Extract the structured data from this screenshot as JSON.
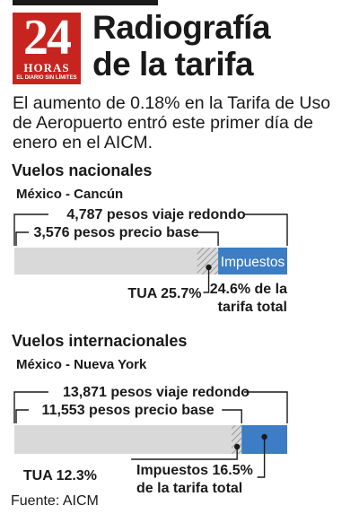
{
  "header": {
    "logo_number": "24",
    "logo_word": "HORAS",
    "logo_tagline": "EL DIARIO SIN LÍMITES",
    "title": "Radiografía de la tarifa",
    "subtitle": "El aumento de 0.18% en la Tarifa de Uso de Aeropuerto entró este primer día de enero en el AICM."
  },
  "colors": {
    "brand": "#c8241f",
    "impuestos": "#3c7dc5",
    "base": "#d9d9d9",
    "tua_hatch": "#9a9a9a",
    "text": "#1a1a1a"
  },
  "chart_data": [
    {
      "type": "bar",
      "orientation": "horizontal-stacked",
      "title": "Vuelos nacionales",
      "route": "México - Cancún",
      "total_pesos": 4787,
      "total_label": "4,787 pesos viaje redondo",
      "base_pesos": 3576,
      "base_label": "3,576 pesos precio base",
      "segments": [
        {
          "name": "Precio base",
          "share_pct": 74.7
        },
        {
          "name": "TUA",
          "share_pct": 25.7,
          "label": "TUA 25.7%"
        },
        {
          "name": "Impuestos",
          "share_pct": 24.6,
          "label": "24.6% de la tarifa total",
          "bar_text": "Impuestos"
        }
      ]
    },
    {
      "type": "bar",
      "orientation": "horizontal-stacked",
      "title": "Vuelos internacionales",
      "route": "México - Nueva York",
      "total_pesos": 13871,
      "total_label": "13,871 pesos viaje redondo",
      "base_pesos": 11553,
      "base_label": "11,553 pesos precio base",
      "segments": [
        {
          "name": "Precio base",
          "share_pct": 83.3
        },
        {
          "name": "TUA",
          "share_pct": 12.3,
          "label": "TUA 12.3%"
        },
        {
          "name": "Impuestos",
          "share_pct": 16.5,
          "label": "Impuestos 16.5% de la tarifa total"
        }
      ]
    }
  ],
  "footer": {
    "source": "Fuente: AICM"
  }
}
